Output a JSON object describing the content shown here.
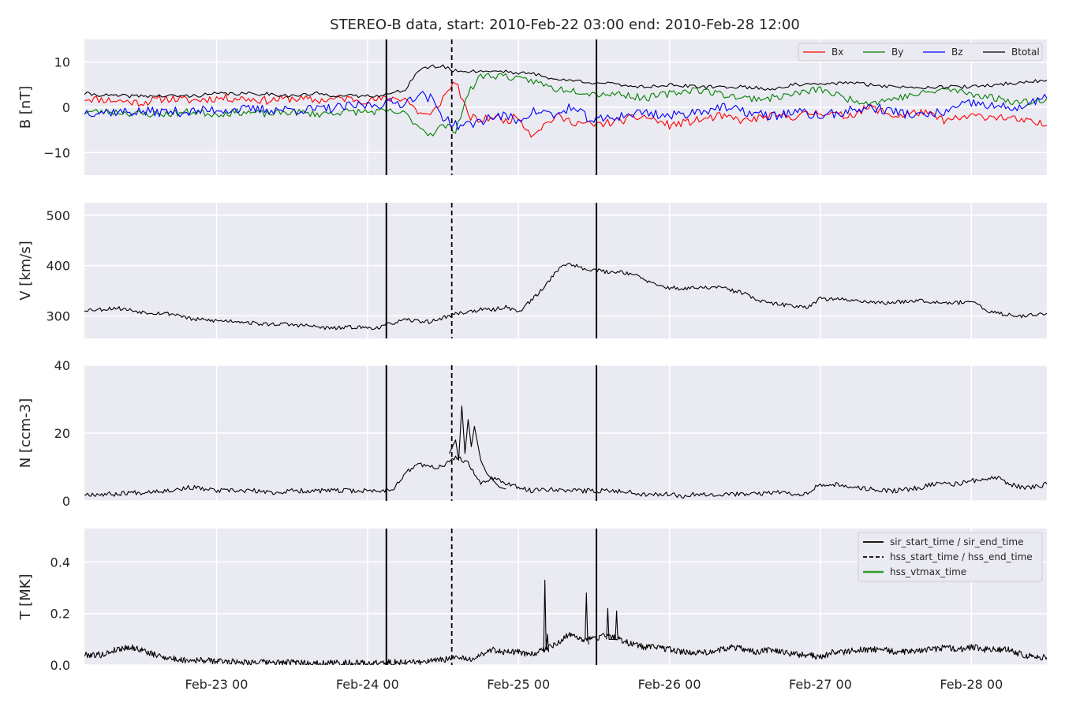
{
  "figure": {
    "title": "STEREO-B data, start: 2010-Feb-22 03:00  end: 2010-Feb-28 12:00",
    "background": "#ffffff",
    "panel_bg": "#eaeaf2",
    "grid_color": "#ffffff"
  },
  "chart_data": [
    {
      "type": "line",
      "id": "b_field",
      "ylabel": "B [nT]",
      "ylim": [
        -15,
        15
      ],
      "yticks": [
        -10,
        0,
        10
      ],
      "ytick_labels": [
        "−10",
        "0",
        "10"
      ],
      "legend_position": "top-right",
      "x_unit": "hours since 2010-02-22 00:00",
      "xlim": [
        3,
        156
      ],
      "series": [
        {
          "name": "Bx",
          "color": "#ff0000",
          "x": [
            3,
            8,
            12,
            16,
            20,
            24,
            28,
            32,
            36,
            40,
            44,
            48,
            52,
            54,
            56,
            58,
            60,
            62,
            64,
            66,
            68,
            70,
            72,
            74,
            76,
            78,
            80,
            84,
            88,
            92,
            96,
            100,
            104,
            108,
            112,
            116,
            120,
            124,
            128,
            132,
            136,
            140,
            144,
            148,
            152,
            156
          ],
          "y": [
            2,
            1.5,
            1,
            2,
            1.5,
            2,
            2,
            1.5,
            2,
            1.5,
            2,
            1.5,
            2,
            2,
            -1,
            -2,
            2,
            6,
            -2,
            -3,
            -2,
            -3,
            -2,
            -6,
            -4,
            -2,
            -3,
            -4,
            -3,
            -2,
            -4,
            -3,
            -2,
            -3,
            -2,
            -2,
            -1,
            -2,
            0,
            -2,
            -1,
            -3,
            -2,
            -2,
            -3,
            -4
          ],
          "step": 3,
          "noise": 0.9,
          "seed": 11
        },
        {
          "name": "By",
          "color": "#008000",
          "x": [
            3,
            8,
            12,
            16,
            20,
            24,
            28,
            32,
            36,
            40,
            44,
            48,
            52,
            54,
            56,
            58,
            60,
            62,
            64,
            66,
            68,
            70,
            72,
            74,
            76,
            78,
            80,
            84,
            88,
            92,
            96,
            100,
            104,
            108,
            112,
            116,
            120,
            124,
            128,
            132,
            136,
            140,
            144,
            148,
            152,
            156
          ],
          "y": [
            -1,
            -1,
            -1.5,
            -1.5,
            -1,
            -1.5,
            -1,
            -1.5,
            -1,
            -1.5,
            -1,
            -1,
            -1,
            -1.5,
            -4,
            -6,
            -4,
            -5,
            3,
            7,
            7,
            7,
            6,
            6,
            5,
            4,
            4,
            3,
            3,
            2,
            3,
            4,
            3,
            2,
            2,
            3,
            4,
            2,
            1,
            2,
            3,
            4,
            3,
            2,
            1,
            2
          ],
          "step": 3,
          "noise": 0.8,
          "seed": 23
        },
        {
          "name": "Bz",
          "color": "#0000ff",
          "x": [
            3,
            8,
            12,
            16,
            20,
            24,
            28,
            32,
            36,
            40,
            44,
            48,
            52,
            54,
            56,
            58,
            60,
            62,
            64,
            66,
            68,
            70,
            72,
            74,
            76,
            78,
            80,
            84,
            88,
            92,
            96,
            100,
            104,
            108,
            112,
            116,
            120,
            124,
            128,
            132,
            136,
            140,
            144,
            148,
            152,
            156
          ],
          "y": [
            -1,
            -1,
            -1,
            -1,
            -1,
            -0.5,
            -0.5,
            -0.5,
            -0.5,
            -0.5,
            0,
            0.5,
            1,
            1,
            3,
            2,
            -2,
            -4,
            -4,
            -3,
            -2,
            -2,
            -3,
            -1,
            -1,
            -2,
            0,
            -3,
            -2,
            -1,
            -2,
            -1,
            0,
            -1,
            -2,
            -1,
            -2,
            -1,
            0,
            -1,
            -2,
            -1,
            1,
            0,
            0,
            2
          ],
          "step": 3,
          "noise": 1.1,
          "seed": 37
        },
        {
          "name": "Btotal",
          "color": "#000000",
          "x": [
            3,
            8,
            12,
            16,
            20,
            24,
            28,
            32,
            36,
            40,
            44,
            48,
            52,
            54,
            56,
            58,
            60,
            62,
            64,
            66,
            68,
            70,
            72,
            74,
            76,
            78,
            80,
            84,
            88,
            92,
            96,
            100,
            104,
            108,
            112,
            116,
            120,
            124,
            128,
            132,
            136,
            140,
            144,
            148,
            152,
            156
          ],
          "y": [
            3,
            2.5,
            2.5,
            2.5,
            2.5,
            3,
            3,
            3,
            2.5,
            3,
            2.5,
            2.5,
            3,
            4,
            8,
            9,
            9,
            8,
            8,
            8,
            8,
            8,
            7.5,
            7.5,
            7,
            6,
            6,
            5.5,
            5,
            4.5,
            5,
            4.5,
            4.5,
            4.5,
            4,
            5,
            5,
            5.5,
            5,
            4.5,
            4.5,
            4.5,
            4.5,
            5,
            5.5,
            6
          ],
          "step": 3,
          "noise": 0.4,
          "seed": 41
        }
      ]
    },
    {
      "type": "line",
      "id": "speed",
      "ylabel": "V [km/s]",
      "ylim": [
        255,
        525
      ],
      "yticks": [
        300,
        400,
        500
      ],
      "ytick_labels": [
        "300",
        "400",
        "500"
      ],
      "x_unit": "hours since 2010-02-22 00:00",
      "xlim": [
        3,
        156
      ],
      "series": [
        {
          "color": "#000000",
          "x": [
            3,
            6,
            8,
            10,
            12,
            14,
            16,
            18,
            20,
            22,
            24,
            26,
            28,
            30,
            32,
            34,
            36,
            38,
            40,
            42,
            44,
            46,
            48,
            50,
            52,
            54,
            56,
            58,
            60,
            62,
            64,
            66,
            68,
            70,
            72,
            74,
            76,
            78,
            80,
            82,
            84,
            86,
            88,
            90,
            92,
            94,
            96,
            98,
            100,
            102,
            104,
            106,
            108,
            110,
            112,
            114,
            116,
            118,
            120,
            122,
            124,
            126,
            128,
            130,
            132,
            134,
            136,
            138,
            140,
            142,
            144,
            146,
            148,
            150,
            152,
            154,
            156
          ],
          "y": [
            312,
            313,
            316,
            312,
            308,
            306,
            305,
            302,
            293,
            292,
            290,
            290,
            289,
            285,
            283,
            284,
            282,
            281,
            278,
            275,
            276,
            278,
            276,
            277,
            286,
            291,
            290,
            288,
            296,
            304,
            308,
            312,
            312,
            318,
            308,
            330,
            355,
            390,
            405,
            395,
            392,
            387,
            388,
            384,
            372,
            360,
            356,
            354,
            355,
            356,
            357,
            350,
            345,
            330,
            325,
            322,
            320,
            318,
            335,
            332,
            333,
            330,
            328,
            325,
            327,
            330,
            331,
            328,
            327,
            326,
            330,
            312,
            305,
            302,
            300,
            302,
            305
          ],
          "step": 2,
          "noise": 4,
          "seed": 53
        }
      ]
    },
    {
      "type": "line",
      "id": "density",
      "ylabel": "N [ccm-3]",
      "ylim": [
        0,
        40
      ],
      "yticks": [
        0,
        20,
        40
      ],
      "ytick_labels": [
        "0",
        "20",
        "40"
      ],
      "x_unit": "hours since 2010-02-22 00:00",
      "xlim": [
        3,
        156
      ],
      "series": [
        {
          "color": "#000000",
          "x": [
            3,
            6,
            8,
            10,
            12,
            14,
            16,
            18,
            20,
            22,
            24,
            26,
            28,
            30,
            32,
            34,
            36,
            38,
            40,
            42,
            44,
            46,
            48,
            50,
            52,
            54,
            56,
            58,
            60,
            62,
            64,
            66,
            68,
            70,
            72,
            74,
            76,
            78,
            80,
            82,
            84,
            86,
            88,
            90,
            92,
            94,
            96,
            98,
            100,
            102,
            104,
            106,
            108,
            110,
            112,
            114,
            116,
            118,
            120,
            122,
            124,
            126,
            128,
            130,
            132,
            134,
            136,
            138,
            140,
            142,
            144,
            146,
            148,
            150,
            152,
            154,
            156
          ],
          "y": [
            2,
            2,
            2,
            2.5,
            2.5,
            3,
            3,
            3.5,
            4,
            3.5,
            3,
            3,
            3,
            3,
            2.5,
            2.5,
            3,
            3,
            3,
            3,
            3,
            3,
            3,
            3,
            3.5,
            8,
            11,
            10,
            10,
            13,
            11,
            5,
            7,
            5,
            4,
            3,
            3.5,
            3.5,
            3,
            3,
            3,
            3,
            3,
            2.5,
            2,
            2,
            2,
            1.5,
            2,
            2,
            2,
            2,
            2,
            2,
            2.5,
            2.5,
            2,
            2.5,
            5,
            5,
            4,
            4,
            3.5,
            3,
            3,
            3.5,
            4,
            5,
            5,
            5,
            6,
            6,
            7,
            5,
            4,
            4,
            5
          ],
          "step": 2,
          "noise": 0.7,
          "seed": 67
        },
        {
          "color": "#000000",
          "x": [
            61,
            62,
            62.5,
            63,
            63.5,
            64,
            64.5,
            65,
            66,
            67,
            68,
            69,
            70
          ],
          "y": [
            14,
            18,
            12,
            28,
            14,
            24,
            16,
            22,
            12,
            8,
            6,
            4,
            3.5
          ],
          "step": 0.5,
          "noise": 0,
          "seed": 1
        }
      ]
    },
    {
      "type": "line",
      "id": "temperature",
      "ylabel": "T [MK]",
      "ylim": [
        0,
        0.53
      ],
      "yticks": [
        0.0,
        0.2,
        0.4
      ],
      "ytick_labels": [
        "0.0",
        "0.2",
        "0.4"
      ],
      "legend_position": "top-right",
      "x_unit": "hours since 2010-02-22 00:00",
      "xlim": [
        3,
        156
      ],
      "series": [
        {
          "color": "#000000",
          "x": [
            3,
            6,
            8,
            10,
            12,
            14,
            16,
            18,
            20,
            22,
            24,
            26,
            28,
            30,
            32,
            34,
            36,
            38,
            40,
            42,
            44,
            46,
            48,
            50,
            52,
            54,
            56,
            58,
            60,
            62,
            64,
            66,
            68,
            70,
            72,
            74,
            76,
            78,
            80,
            82,
            84,
            86,
            88,
            90,
            92,
            94,
            96,
            98,
            100,
            102,
            104,
            106,
            108,
            110,
            112,
            114,
            116,
            118,
            120,
            122,
            124,
            126,
            128,
            130,
            132,
            134,
            136,
            138,
            140,
            142,
            144,
            146,
            148,
            150,
            152,
            154,
            156
          ],
          "y": [
            0.04,
            0.04,
            0.06,
            0.07,
            0.06,
            0.04,
            0.03,
            0.02,
            0.02,
            0.018,
            0.015,
            0.015,
            0.012,
            0.012,
            0.01,
            0.01,
            0.01,
            0.008,
            0.008,
            0.008,
            0.008,
            0.008,
            0.008,
            0.008,
            0.01,
            0.012,
            0.012,
            0.015,
            0.02,
            0.03,
            0.02,
            0.04,
            0.06,
            0.05,
            0.05,
            0.04,
            0.06,
            0.08,
            0.12,
            0.1,
            0.1,
            0.12,
            0.1,
            0.08,
            0.07,
            0.07,
            0.06,
            0.05,
            0.05,
            0.05,
            0.06,
            0.07,
            0.06,
            0.05,
            0.06,
            0.05,
            0.04,
            0.04,
            0.03,
            0.05,
            0.05,
            0.06,
            0.06,
            0.06,
            0.05,
            0.05,
            0.06,
            0.06,
            0.07,
            0.06,
            0.07,
            0.06,
            0.06,
            0.06,
            0.04,
            0.03,
            0.03
          ],
          "step": 1,
          "noise": 0.012,
          "seed": 79
        },
        {
          "color": "#000000",
          "x": [
            76,
            76.2,
            76.4,
            76.6,
            76.8
          ],
          "y": [
            0.05,
            0.33,
            0.06,
            0.12,
            0.05
          ],
          "step": 0.2,
          "noise": 0,
          "seed": 1
        },
        {
          "color": "#000000",
          "x": [
            82.6,
            82.8,
            83,
            83.2
          ],
          "y": [
            0.1,
            0.28,
            0.1,
            0.08
          ],
          "step": 0.2,
          "noise": 0,
          "seed": 1
        },
        {
          "color": "#000000",
          "x": [
            86,
            86.2,
            86.4,
            87.4,
            87.6,
            87.8
          ],
          "y": [
            0.1,
            0.22,
            0.1,
            0.1,
            0.21,
            0.1
          ],
          "step": 0.2,
          "noise": 0,
          "seed": 1
        }
      ]
    }
  ],
  "x_axis": {
    "tick_positions": [
      24,
      48,
      72,
      96,
      120,
      144
    ],
    "tick_labels": [
      "Feb-23 00",
      "Feb-24 00",
      "Feb-25 00",
      "Feb-26 00",
      "Feb-27 00",
      "Feb-28 00"
    ]
  },
  "event_lines": {
    "sir_start_time": 51,
    "hss_start_time": 61.4,
    "sir_end_time": 84.4
  },
  "b_legend": {
    "entries": [
      {
        "label": "Bx",
        "color": "#ff0000"
      },
      {
        "label": "By",
        "color": "#008000"
      },
      {
        "label": "Bz",
        "color": "#0000ff"
      },
      {
        "label": "Btotal",
        "color": "#000000"
      }
    ]
  },
  "t_legend": {
    "entries": [
      {
        "label": "sir_start_time / sir_end_time",
        "color": "#000000",
        "style": "solid"
      },
      {
        "label": "hss_start_time / hss_end_time",
        "color": "#000000",
        "style": "dashed"
      },
      {
        "label": "hss_vtmax_time",
        "color": "#2ca02c",
        "style": "solid"
      }
    ]
  }
}
